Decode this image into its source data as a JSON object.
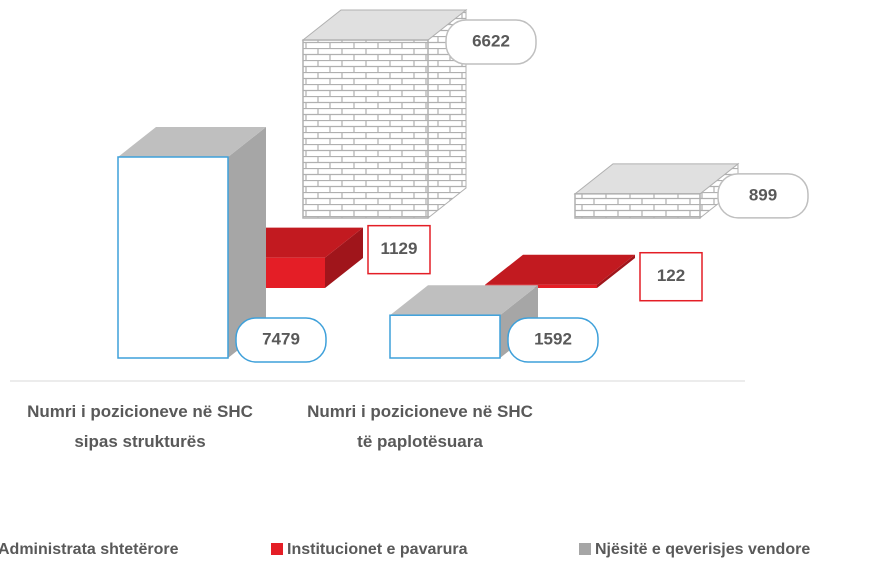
{
  "chart_data": {
    "type": "bar3d",
    "categories": [
      "Numri i pozicioneve në SHC sipas strukturës",
      "Numri i pozicioneve në SHC të paplotësuara"
    ],
    "series": [
      {
        "name": "Administrata shtetërore",
        "color": "#3ea0da",
        "values": [
          7479,
          1592
        ]
      },
      {
        "name": "Institucionet e pavarura",
        "color": "#e41e26",
        "values": [
          1129,
          122
        ]
      },
      {
        "name": "Njësitë e qeverisjes vendore",
        "color": "#a6a6a6",
        "values": [
          6622,
          899
        ]
      }
    ]
  }
}
